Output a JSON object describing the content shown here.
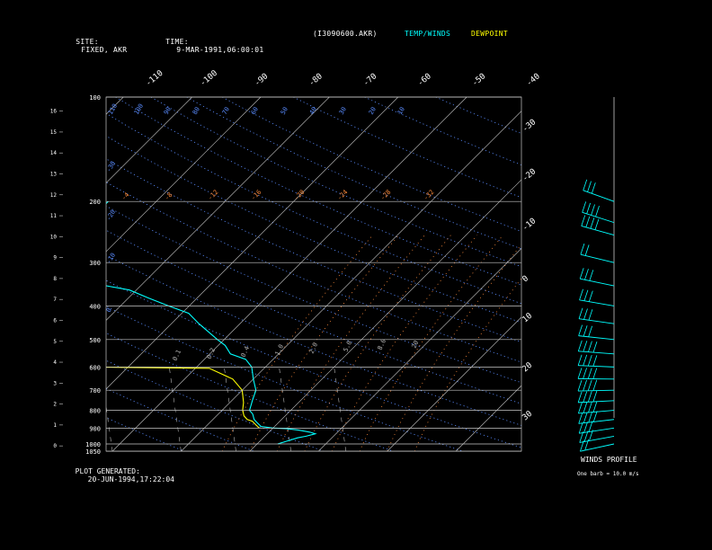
{
  "header": {
    "site_label": "SITE:",
    "site_value": "FIXED, AKR",
    "time_label": "TIME:",
    "time_value": "9-MAR-1991,06:00:01",
    "file": "(I3090600.AKR)",
    "temp_legend": "TEMP/WINDS",
    "dew_legend": "DEWPOINT"
  },
  "footer": {
    "generated_label": "PLOT GENERATED:",
    "generated_value": "20-JUN-1994,17:22:04",
    "winds_title": "WINDS PROFILE",
    "barb_note": "One barb = 10.0 m/s"
  },
  "colors": {
    "background": "#000000",
    "grid": "#c8c8c8",
    "temp": "#00ffff",
    "dewpoint": "#ffff00",
    "dry_adiabat": "#5a8cff",
    "moist_adiabat": "#ff8c3c",
    "mixing_ratio": "#b4b4b4",
    "text": "#ffffff"
  },
  "chart_data": {
    "type": "line",
    "title": "",
    "pressure_levels": [
      "100",
      "200",
      "300",
      "400",
      "500",
      "600",
      "700",
      "800",
      "900",
      "1000",
      "1050"
    ],
    "height_ticks": [
      "16",
      "15",
      "14",
      "13",
      "12",
      "11",
      "10",
      "9",
      "8",
      "7",
      "6",
      "5",
      "4",
      "3",
      "2",
      "1",
      "0"
    ],
    "top_temp_labels": [
      "-110",
      "-100",
      "-90",
      "-80",
      "-70",
      "-60",
      "-50",
      "-40"
    ],
    "right_temp_labels": [
      "-30",
      "-20",
      "-10",
      "0",
      "10",
      "20",
      "30"
    ],
    "dry_adiabat_labels": [
      "10",
      "20",
      "30",
      "40",
      "50",
      "60",
      "70",
      "80",
      "90",
      "100",
      "110"
    ],
    "moist_adiabat_labels": [
      "-4",
      "-8",
      "-12",
      "-16",
      "-20",
      "-24",
      "-28",
      "-32"
    ],
    "mixing_ratio_labels": [
      "0.1",
      "0.2",
      "0.4",
      "1.0",
      "2.0",
      "5.0",
      "8.0",
      "20"
    ],
    "extra_dry_labels": [
      "-30",
      "-20",
      "-10",
      "0"
    ],
    "series": [
      {
        "name": "TEMP/WINDS",
        "p": [
          1000,
          980,
          960,
          950,
          935,
          925,
          912,
          903,
          900,
          895,
          890,
          870,
          850,
          820,
          800,
          750,
          700,
          650,
          600,
          570,
          550,
          520,
          500,
          450,
          420,
          400,
          380,
          360,
          350,
          330,
          310,
          300,
          285,
          270,
          255,
          240,
          230,
          220,
          210,
          200
        ],
        "t": [
          3,
          4,
          5,
          6,
          7,
          6,
          4,
          2,
          0,
          -1,
          -2,
          -3,
          -4,
          -5,
          -6,
          -7,
          -8,
          -10,
          -12,
          -14,
          -17,
          -19,
          -21,
          -26,
          -29,
          -33,
          -37,
          -41,
          -45,
          -48,
          -53,
          -55,
          -57,
          -58,
          -58,
          -58,
          -58,
          -58,
          -57,
          -57
        ]
      },
      {
        "name": "DEWPOINT",
        "p": [
          900,
          880,
          860,
          850,
          830,
          800,
          760,
          700,
          650,
          605,
          600,
          598,
          595,
          590,
          580,
          560,
          540,
          520,
          510,
          500,
          490,
          470,
          440,
          420,
          400,
          380,
          360,
          340,
          320,
          300
        ],
        "t": [
          -2,
          -3,
          -4,
          -5,
          -6,
          -7,
          -8,
          -10,
          -13,
          -18,
          -35,
          -41,
          -42,
          -43,
          -46,
          -48,
          -47,
          -42,
          -40,
          -41,
          -46,
          -48,
          -50,
          -56,
          -59,
          -65,
          -68,
          -70,
          -75,
          -78
        ]
      }
    ],
    "winds": {
      "p": [
        1000,
        950,
        900,
        850,
        800,
        750,
        700,
        650,
        600,
        550,
        500,
        450,
        400,
        350,
        300,
        250,
        230,
        200
      ],
      "speed_ms": [
        15,
        25,
        30,
        35,
        35,
        40,
        40,
        40,
        35,
        35,
        30,
        30,
        25,
        25,
        20,
        35,
        35,
        30
      ]
    }
  }
}
